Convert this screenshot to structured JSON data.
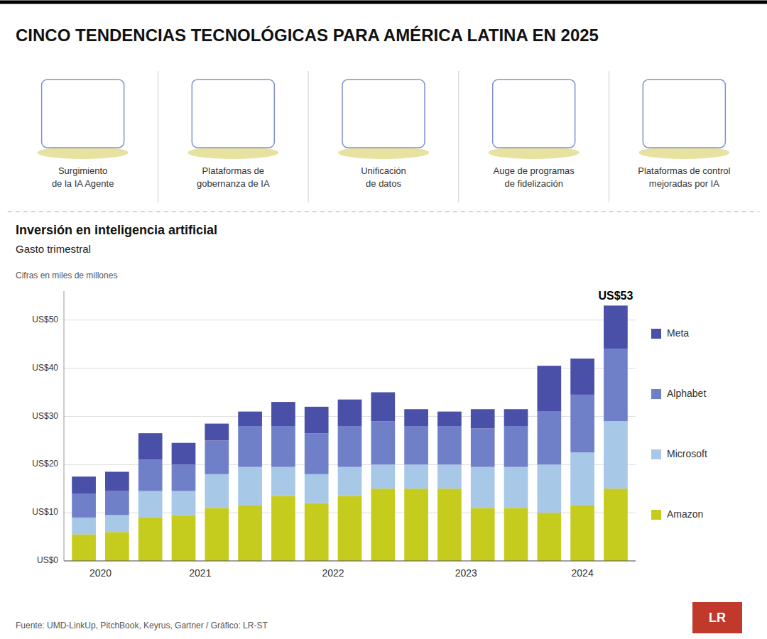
{
  "chart_data": {
    "type": "bar",
    "stacked": true,
    "header": "CINCO TENDENCIAS TECNOLÓGICAS PARA AMÉRICA LATINA EN 2025",
    "title": "Inversión en inteligencia artificial",
    "subtitle": "Gasto trimestral",
    "units_note": "Cifras en miles de millones",
    "icon_labels": [
      "Surgimiento\nde la IA Agente",
      "Plataformas de\ngobernanza de IA",
      "Unificación\nde datos",
      "Auge de programas\nde fidelización",
      "Plataformas de control\nmejoradas por IA"
    ],
    "source": "Fuente: UMD-LinkUp, PitchBook,  Keyrus, Gartner / Gráfico: LR-ST",
    "logo": "LR",
    "categories": [
      "2020",
      null,
      "2021",
      null,
      null,
      null,
      "2022",
      null,
      null,
      null,
      "2023",
      null,
      null,
      null,
      "2024",
      null,
      null
    ],
    "series": [
      {
        "name": "Amazon",
        "color": "#c5cc1e",
        "values": [
          5.5,
          6.0,
          9.0,
          9.5,
          11.0,
          11.5,
          13.5,
          12.0,
          13.5,
          15.0,
          15.0,
          15.0,
          11.0,
          11.0,
          10.0,
          11.5,
          15.0
        ]
      },
      {
        "name": "Microsoft",
        "color": "#a8c8e8",
        "values": [
          3.5,
          3.5,
          5.5,
          5.0,
          7.0,
          8.0,
          6.0,
          6.0,
          6.0,
          5.0,
          5.0,
          5.0,
          8.5,
          8.5,
          10.0,
          11.0,
          14.0
        ]
      },
      {
        "name": "Alphabet",
        "color": "#7080c8",
        "values": [
          5.0,
          5.0,
          6.5,
          5.5,
          7.0,
          8.5,
          8.5,
          8.5,
          8.5,
          9.0,
          8.0,
          8.0,
          8.0,
          8.5,
          11.0,
          12.0,
          15.0
        ]
      },
      {
        "name": "Meta",
        "color": "#4a4fa8",
        "values": [
          3.5,
          4.0,
          5.5,
          4.5,
          3.5,
          3.0,
          5.0,
          5.5,
          5.5,
          6.0,
          3.5,
          3.0,
          4.0,
          3.5,
          9.5,
          7.5,
          9.0
        ]
      }
    ],
    "ylim": [
      0,
      56
    ],
    "yticks": [
      {
        "value": 0,
        "label": "US$0"
      },
      {
        "value": 10,
        "label": "US$10"
      },
      {
        "value": 20,
        "label": "US$20"
      },
      {
        "value": 30,
        "label": "US$30"
      },
      {
        "value": 40,
        "label": "US$40"
      },
      {
        "value": 50,
        "label": "US$50"
      }
    ],
    "grid": true,
    "legend": "right",
    "annotations": [
      {
        "text": "US$53",
        "value": 53
      }
    ]
  }
}
